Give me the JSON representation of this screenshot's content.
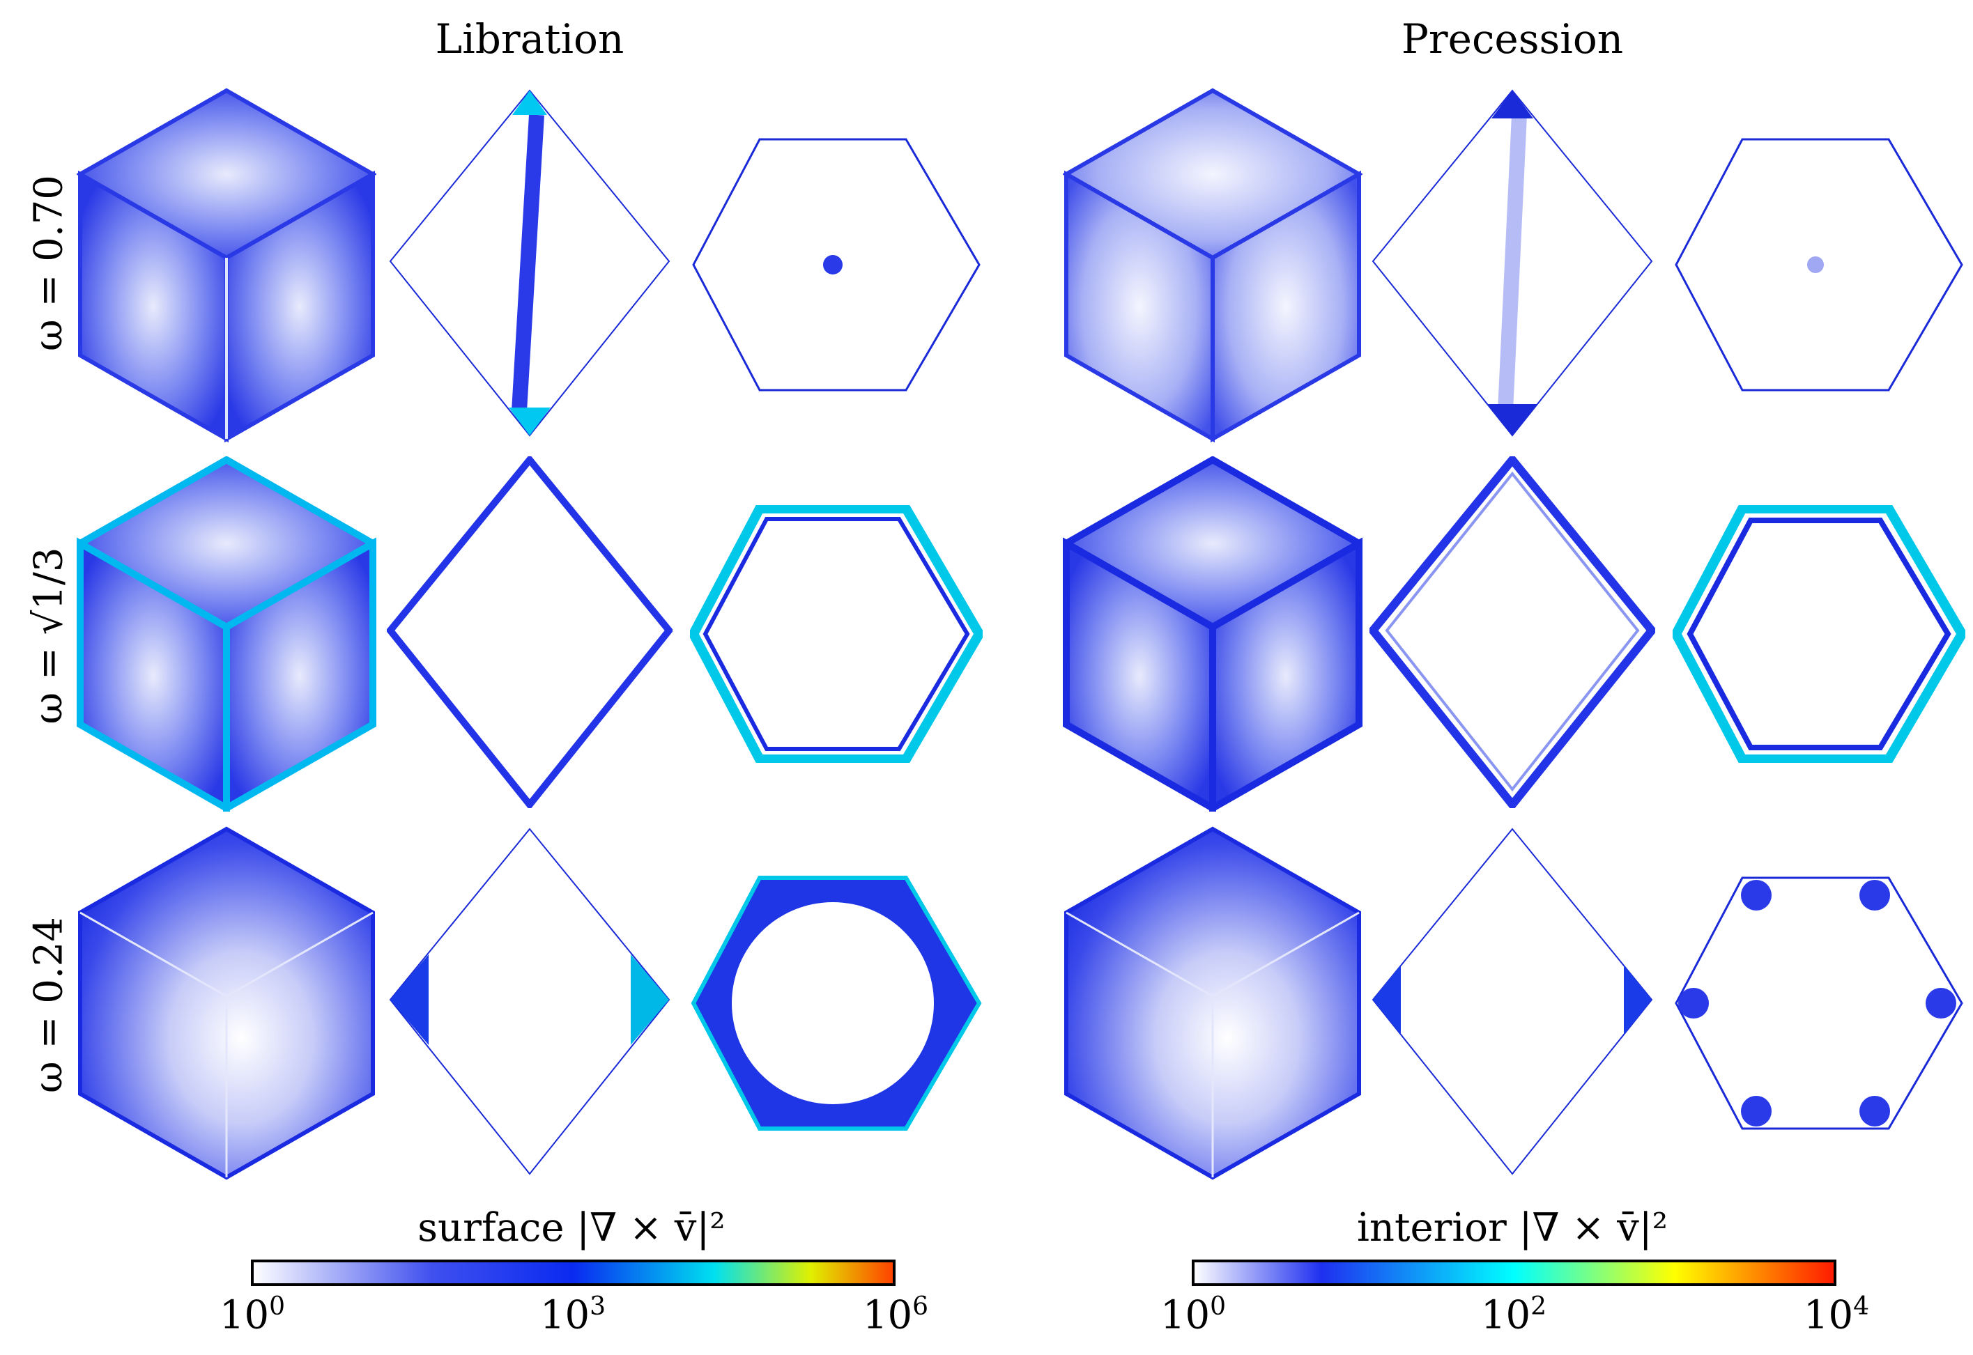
{
  "columns": [
    {
      "title": "Libration"
    },
    {
      "title": "Precession"
    }
  ],
  "rows": [
    {
      "label": "ω = 0.70"
    },
    {
      "label": "ω = √1/3"
    },
    {
      "label": "ω = 0.24"
    }
  ],
  "colorbars": [
    {
      "label": "surface |∇ × v̄|²",
      "ticks": [
        {
          "base": "10",
          "exp": "0"
        },
        {
          "base": "10",
          "exp": "3"
        },
        {
          "base": "10",
          "exp": "6"
        }
      ]
    },
    {
      "label": "interior |∇ × v̄|²",
      "ticks": [
        {
          "base": "10",
          "exp": "0"
        },
        {
          "base": "10",
          "exp": "2"
        },
        {
          "base": "10",
          "exp": "4"
        }
      ]
    }
  ],
  "colors": {
    "surface_gradient": [
      "#ffffff",
      "#3f4ff0",
      "#0b2cf0",
      "#00d8f2",
      "#e6f000",
      "#ff4a00"
    ],
    "interior_gradient": [
      "#ffffff",
      "#2233f0",
      "#00ffff",
      "#ffff00",
      "#ff2000"
    ],
    "cube_light": "#c9cff8",
    "cube_mid": "#5564ee",
    "cube_dark": "#1b2ae0"
  }
}
